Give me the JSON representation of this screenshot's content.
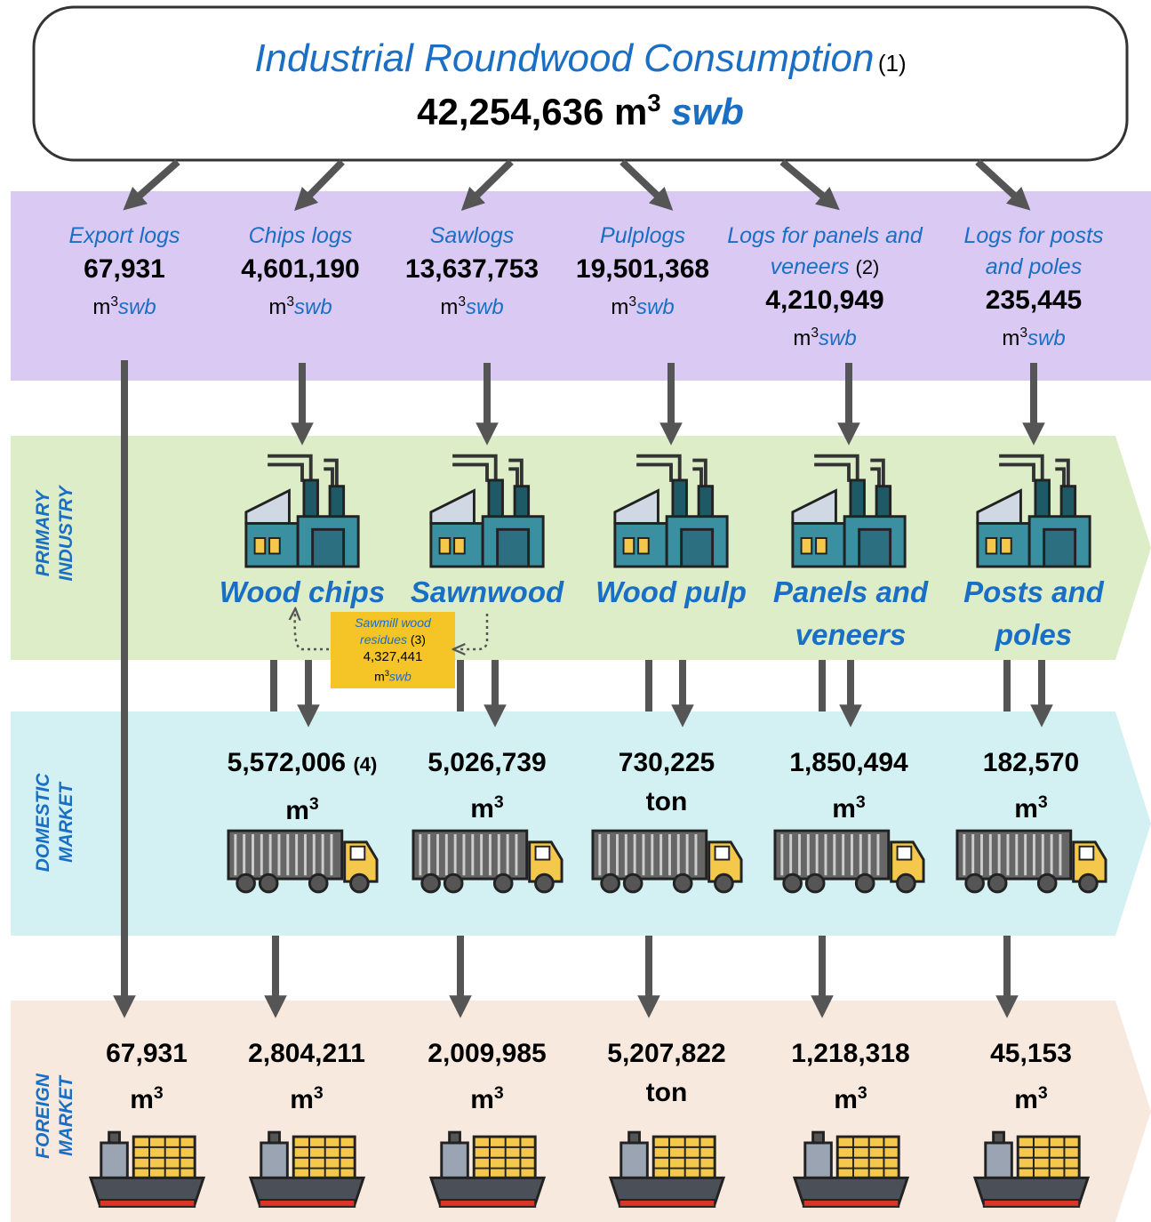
{
  "header": {
    "title": "Industrial Roundwood Consumption",
    "title_note": "(1)",
    "total": "42,254,636",
    "unit": "m",
    "unit_exponent": "3",
    "unit_basis": "swb"
  },
  "log_types": [
    {
      "name": "Export logs",
      "volume": "67,931",
      "unit": "m",
      "unit_exponent": "3",
      "unit_basis": "swb"
    },
    {
      "name": "Chips logs",
      "volume": "4,601,190",
      "unit": "m",
      "unit_exponent": "3",
      "unit_basis": "swb"
    },
    {
      "name": "Sawlogs",
      "volume": "13,637,753",
      "unit": "m",
      "unit_exponent": "3",
      "unit_basis": "swb"
    },
    {
      "name": "Pulplogs",
      "volume": "19,501,368",
      "unit": "m",
      "unit_exponent": "3",
      "unit_basis": "swb"
    },
    {
      "name": "Logs for panels and veneers",
      "note": "(2)",
      "volume": "4,210,949",
      "unit": "m",
      "unit_exponent": "3",
      "unit_basis": "swb"
    },
    {
      "name": "Logs for posts and poles",
      "volume": "235,445",
      "unit": "m",
      "unit_exponent": "3",
      "unit_basis": "swb"
    }
  ],
  "bands": {
    "primary_industry": [
      "PRIMARY",
      "INDUSTRY"
    ],
    "domestic_market": [
      "DOMESTIC",
      "MARKET"
    ],
    "foreign_market": [
      "FOREIGN",
      "MARKET"
    ]
  },
  "products": [
    "Wood chips",
    "Sawnwood",
    "Wood pulp",
    "Panels and veneers",
    "Posts and poles"
  ],
  "residues": {
    "label": "Sawmill wood residues",
    "note": "(3)",
    "volume": "4,327,441",
    "unit": "m",
    "unit_exponent": "3",
    "unit_basis": "swb"
  },
  "domestic_market": [
    {
      "volume": "5,572,006",
      "note": "(4)",
      "unit": "m",
      "unit_exponent": "3"
    },
    {
      "volume": "5,026,739",
      "unit": "m",
      "unit_exponent": "3"
    },
    {
      "volume": "730,225",
      "unit": "ton"
    },
    {
      "volume": "1,850,494",
      "unit": "m",
      "unit_exponent": "3"
    },
    {
      "volume": "182,570",
      "unit": "m",
      "unit_exponent": "3"
    }
  ],
  "foreign_market": [
    {
      "volume": "67,931",
      "unit": "m",
      "unit_exponent": "3"
    },
    {
      "volume": "2,804,211",
      "unit": "m",
      "unit_exponent": "3"
    },
    {
      "volume": "2,009,985",
      "unit": "m",
      "unit_exponent": "3"
    },
    {
      "volume": "5,207,822",
      "unit": "ton"
    },
    {
      "volume": "1,218,318",
      "unit": "m",
      "unit_exponent": "3"
    },
    {
      "volume": "45,153",
      "unit": "m",
      "unit_exponent": "3"
    }
  ]
}
